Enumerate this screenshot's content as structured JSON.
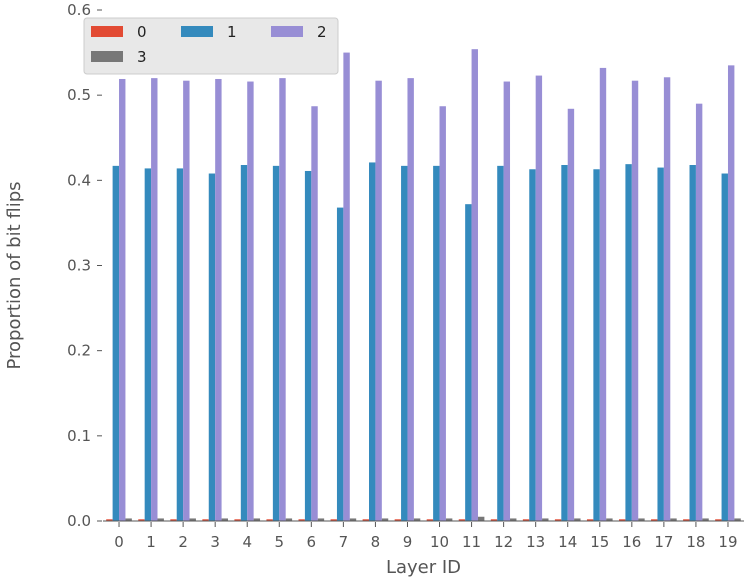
{
  "chart_data": {
    "type": "bar",
    "categories": [
      "0",
      "1",
      "2",
      "3",
      "4",
      "5",
      "6",
      "7",
      "8",
      "9",
      "10",
      "11",
      "12",
      "13",
      "14",
      "15",
      "16",
      "17",
      "18",
      "19"
    ],
    "series": [
      {
        "name": "0",
        "color": "#E24A33",
        "values": [
          0.002,
          0.002,
          0.002,
          0.002,
          0.002,
          0.002,
          0.002,
          0.002,
          0.002,
          0.002,
          0.002,
          0.002,
          0.002,
          0.002,
          0.002,
          0.002,
          0.002,
          0.002,
          0.002,
          0.002
        ]
      },
      {
        "name": "1",
        "color": "#348ABD",
        "values": [
          0.417,
          0.414,
          0.414,
          0.408,
          0.418,
          0.417,
          0.411,
          0.368,
          0.421,
          0.417,
          0.417,
          0.372,
          0.417,
          0.413,
          0.418,
          0.413,
          0.419,
          0.415,
          0.418,
          0.408
        ]
      },
      {
        "name": "2",
        "color": "#988ED5",
        "values": [
          0.519,
          0.52,
          0.517,
          0.519,
          0.516,
          0.52,
          0.487,
          0.55,
          0.517,
          0.52,
          0.487,
          0.554,
          0.516,
          0.523,
          0.484,
          0.532,
          0.517,
          0.521,
          0.49,
          0.535
        ]
      },
      {
        "name": "3",
        "color": "#777777",
        "values": [
          0.003,
          0.003,
          0.003,
          0.003,
          0.003,
          0.003,
          0.003,
          0.003,
          0.003,
          0.003,
          0.003,
          0.005,
          0.003,
          0.003,
          0.003,
          0.003,
          0.003,
          0.003,
          0.003,
          0.003
        ]
      }
    ],
    "xlabel": "Layer ID",
    "ylabel": "Proportion of bit flips",
    "ylim": [
      0.0,
      0.6
    ],
    "yticks": [
      "0.0",
      "0.1",
      "0.2",
      "0.3",
      "0.4",
      "0.5",
      "0.6"
    ],
    "grid": false,
    "legend": {
      "placement": "top-left",
      "columns": 3
    }
  }
}
